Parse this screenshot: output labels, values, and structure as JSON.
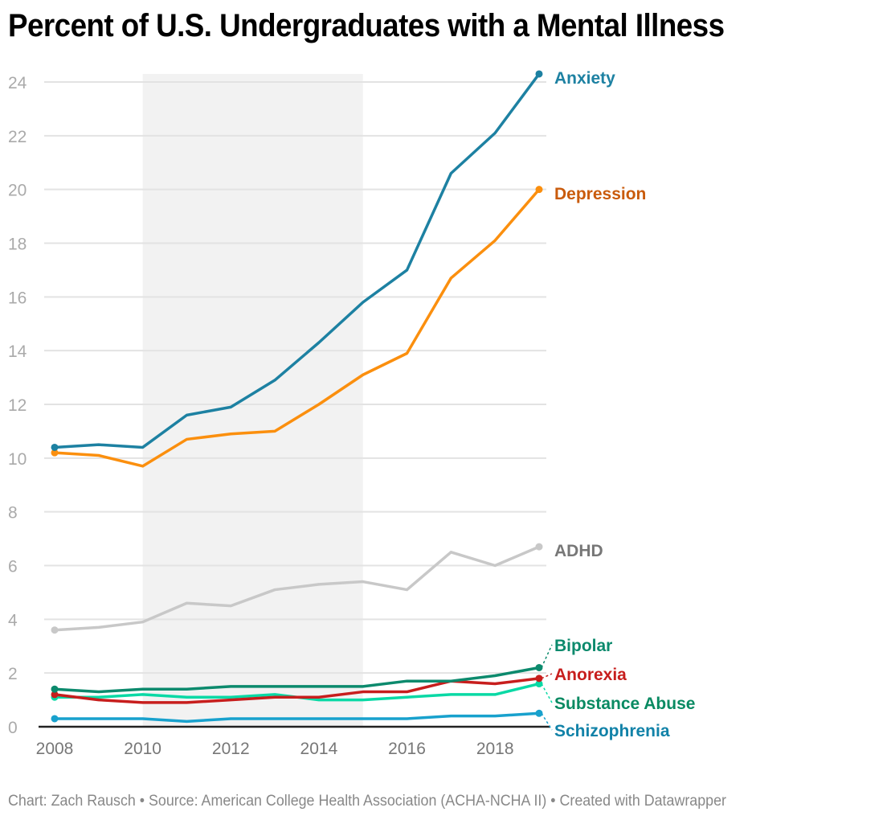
{
  "title": "Percent of U.S. Undergraduates with a Mental Illness",
  "footer": "Chart: Zach Rausch • Source: American College Health Association (ACHA-NCHA II) • Created with Datawrapper",
  "chart_data": {
    "type": "line",
    "title": "Percent of U.S. Undergraduates with a Mental Illness",
    "xlabel": "",
    "ylabel": "",
    "x": [
      2008,
      2009,
      2010,
      2011,
      2012,
      2013,
      2014,
      2015,
      2016,
      2017,
      2018,
      2019
    ],
    "xlim": [
      2008,
      2019
    ],
    "ylim": [
      0,
      24
    ],
    "xticks": [
      2008,
      2010,
      2012,
      2014,
      2016,
      2018
    ],
    "yticks": [
      0,
      2,
      4,
      6,
      8,
      10,
      12,
      14,
      16,
      18,
      20,
      22,
      24
    ],
    "grid": true,
    "highlight_range": {
      "x_start": 2010,
      "x_end": 2015,
      "color": "#f2f2f2"
    },
    "legend": "direct-labels-right",
    "series": [
      {
        "name": "Anxiety",
        "color": "#1d81a2",
        "label_color": "#1d81a2",
        "values": [
          10.4,
          10.5,
          10.4,
          11.6,
          11.9,
          12.9,
          14.3,
          15.8,
          17.0,
          20.6,
          22.1,
          24.3
        ]
      },
      {
        "name": "Depression",
        "color": "#fb8f0e",
        "label_color": "#c95b0c",
        "values": [
          10.2,
          10.1,
          9.7,
          10.7,
          10.9,
          11.0,
          12.0,
          13.1,
          13.9,
          16.7,
          18.1,
          20.0
        ]
      },
      {
        "name": "ADHD",
        "color": "#c8c8c8",
        "label_color": "#777777",
        "values": [
          3.6,
          3.7,
          3.9,
          4.6,
          4.5,
          5.1,
          5.3,
          5.4,
          5.1,
          6.5,
          6.0,
          6.7
        ]
      },
      {
        "name": "Bipolar",
        "color": "#0c8a6d",
        "label_color": "#0c8a6d",
        "values": [
          1.4,
          1.3,
          1.4,
          1.4,
          1.5,
          1.5,
          1.5,
          1.5,
          1.7,
          1.7,
          1.9,
          2.2
        ]
      },
      {
        "name": "Anorexia",
        "color": "#c71e1d",
        "label_color": "#c71e1d",
        "values": [
          1.2,
          1.0,
          0.9,
          0.9,
          1.0,
          1.1,
          1.1,
          1.3,
          1.3,
          1.7,
          1.6,
          1.8
        ]
      },
      {
        "name": "Substance Abuse",
        "color": "#09d9a5",
        "label_color": "#098a62",
        "values": [
          1.1,
          1.1,
          1.2,
          1.1,
          1.1,
          1.2,
          1.0,
          1.0,
          1.1,
          1.2,
          1.2,
          1.6
        ]
      },
      {
        "name": "Schizophrenia",
        "color": "#18a1cd",
        "label_color": "#1182a8",
        "values": [
          0.3,
          0.3,
          0.3,
          0.2,
          0.3,
          0.3,
          0.3,
          0.3,
          0.3,
          0.4,
          0.4,
          0.5
        ]
      }
    ]
  }
}
